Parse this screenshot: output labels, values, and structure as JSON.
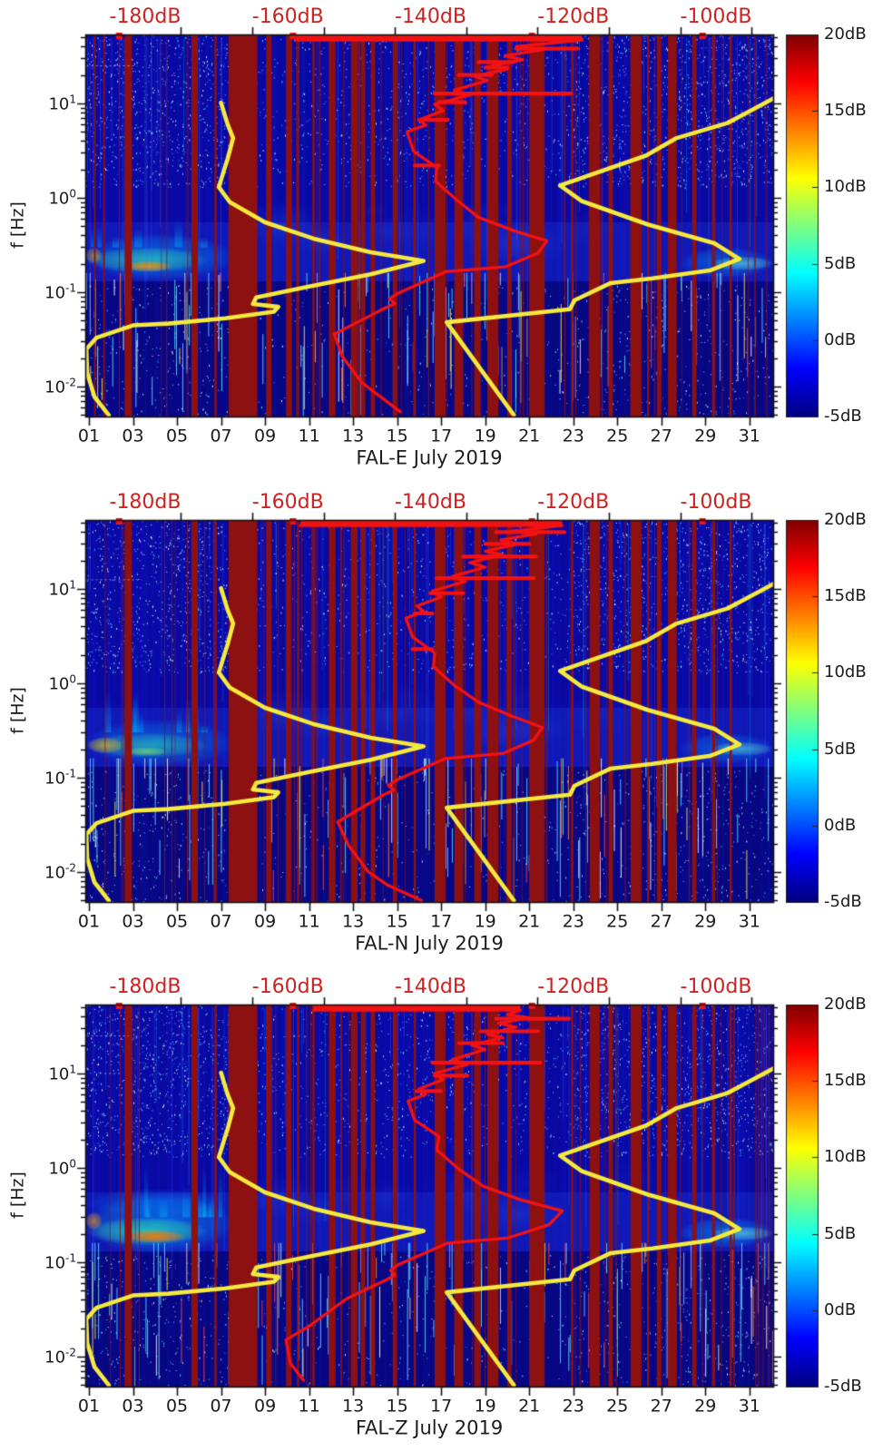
{
  "shared": {
    "ylabel": "f [Hz]",
    "y_base": "10",
    "y_tick_exponents": [
      "1",
      "0",
      "-1",
      "-2"
    ],
    "x_tick_labels": [
      "01",
      "03",
      "05",
      "07",
      "09",
      "11",
      "13",
      "15",
      "17",
      "19",
      "21",
      "23",
      "25",
      "27",
      "29",
      "31"
    ],
    "x_tick_days": [
      1,
      3,
      5,
      7,
      9,
      11,
      13,
      15,
      17,
      19,
      21,
      23,
      25,
      27,
      29,
      31
    ],
    "x_range_days": [
      0.835,
      32.08
    ],
    "y_range_hz": [
      0.0048,
      53.8
    ],
    "y_scale": "log",
    "top_axis": {
      "labels": [
        "-180dB",
        "-160dB",
        "-140dB",
        "-120dB",
        "-100dB"
      ],
      "values": [
        -180,
        -160,
        -140,
        -120,
        -100
      ],
      "range": [
        -188.4,
        -92.0
      ],
      "minor_step": 10
    },
    "colorbar": {
      "labels": [
        "20dB",
        "15dB",
        "10dB",
        "5dB",
        "0dB",
        "-5dB"
      ],
      "values": [
        20,
        15,
        10,
        5,
        0,
        -5
      ],
      "range": [
        -5,
        20
      ]
    },
    "gap_days": [
      [
        2.62,
        2.95
      ],
      [
        5.65,
        5.95
      ],
      [
        6.7,
        6.8
      ],
      [
        7.35,
        8.65
      ],
      [
        9.05,
        9.3
      ],
      [
        9.95,
        10.2
      ],
      [
        10.45,
        10.55
      ],
      [
        11.15,
        11.25
      ],
      [
        11.9,
        12.2
      ],
      [
        12.9,
        13.2
      ],
      [
        13.35,
        13.55
      ],
      [
        13.8,
        14.0
      ],
      [
        14.8,
        15.0
      ],
      [
        15.75,
        15.85
      ],
      [
        16.7,
        17.2
      ],
      [
        17.6,
        18.0
      ],
      [
        18.5,
        18.8
      ],
      [
        19.1,
        19.6
      ],
      [
        20.0,
        20.2
      ],
      [
        21.0,
        21.7
      ],
      [
        22.9,
        23.0
      ],
      [
        23.75,
        24.2
      ],
      [
        24.6,
        24.8
      ],
      [
        25.6,
        26.1
      ],
      [
        26.35,
        26.45
      ],
      [
        26.8,
        27.0
      ],
      [
        27.3,
        27.7
      ],
      [
        28.4,
        28.6
      ],
      [
        29.3,
        29.45
      ],
      [
        30.1,
        30.2
      ]
    ],
    "top_mark_days": [
      2.35,
      10.25,
      21.1,
      28.85
    ],
    "curves": {
      "low_noise_model": {
        "color": "#f6e93e",
        "points": [
          [
            7.0,
            10.2
          ],
          [
            7.3,
            6.0
          ],
          [
            7.55,
            4.3
          ],
          [
            7.3,
            2.6
          ],
          [
            6.9,
            1.3
          ],
          [
            7.4,
            0.9
          ],
          [
            9.0,
            0.55
          ],
          [
            11.2,
            0.37
          ],
          [
            13.8,
            0.265
          ],
          [
            16.2,
            0.215
          ],
          [
            13.8,
            0.155
          ],
          [
            11.0,
            0.115
          ],
          [
            8.6,
            0.088
          ],
          [
            8.45,
            0.075
          ],
          [
            9.6,
            0.07
          ],
          [
            9.4,
            0.062
          ],
          [
            7.2,
            0.053
          ],
          [
            4.6,
            0.0465
          ],
          [
            3.0,
            0.0445
          ],
          [
            1.35,
            0.033
          ],
          [
            0.88,
            0.025
          ],
          [
            0.92,
            0.014
          ],
          [
            1.25,
            0.0078
          ],
          [
            1.9,
            0.005
          ]
        ]
      },
      "high_noise_model": {
        "color": "#f6e93e",
        "points": [
          [
            32.15,
            11.5
          ],
          [
            30.9,
            8.0
          ],
          [
            30.0,
            6.2
          ],
          [
            27.7,
            4.3
          ],
          [
            26.3,
            2.8
          ],
          [
            22.4,
            1.35
          ],
          [
            23.4,
            0.92
          ],
          [
            26.4,
            0.52
          ],
          [
            29.4,
            0.33
          ],
          [
            30.55,
            0.225
          ],
          [
            29.2,
            0.17
          ],
          [
            26.6,
            0.14
          ],
          [
            24.7,
            0.125
          ],
          [
            23.05,
            0.082
          ],
          [
            22.85,
            0.066
          ],
          [
            17.25,
            0.048
          ],
          [
            20.3,
            0.005
          ]
        ]
      }
    }
  },
  "colors": {
    "background_blue": "#0a0aaa",
    "gap_red": "#8e1111",
    "curve_yellow": "#f6e93e",
    "curve_red": "#f31212",
    "top_label_red": "#cc2222",
    "axis_black": "#111111",
    "jet_stops": [
      [
        0,
        "#00007f"
      ],
      [
        0.125,
        "#0000ff"
      ],
      [
        0.375,
        "#00ffff"
      ],
      [
        0.625,
        "#ffff00"
      ],
      [
        0.875,
        "#ff0000"
      ],
      [
        1,
        "#7f0000"
      ]
    ]
  },
  "chart_data": [
    {
      "type": "heatmap",
      "title": "FAL-E July 2019",
      "component": "FAL-E",
      "seed": 11,
      "median_psd": {
        "color": "#f31212",
        "top_plateau": [
          10.4,
          23.4
        ],
        "points": [
          [
            10.4,
            47
          ],
          [
            23.4,
            47
          ],
          [
            20.4,
            40
          ],
          [
            21.6,
            37
          ],
          [
            19.9,
            32
          ],
          [
            20.7,
            29
          ],
          [
            19.3,
            25
          ],
          [
            20.0,
            23
          ],
          [
            18.5,
            19.5
          ],
          [
            19.1,
            17.5
          ],
          [
            17.6,
            13.8
          ],
          [
            18.3,
            12.3
          ],
          [
            16.7,
            9.8
          ],
          [
            17.1,
            8.4
          ],
          [
            16.0,
            6.7
          ],
          [
            16.3,
            5.9
          ],
          [
            15.45,
            5.0
          ],
          [
            15.75,
            3.1
          ],
          [
            16.8,
            2.1
          ],
          [
            16.75,
            1.5
          ],
          [
            17.7,
            0.95
          ],
          [
            18.7,
            0.62
          ],
          [
            20.4,
            0.44
          ],
          [
            21.8,
            0.35
          ],
          [
            21.4,
            0.26
          ],
          [
            19.9,
            0.185
          ],
          [
            17.2,
            0.165
          ],
          [
            15.0,
            0.096
          ],
          [
            14.65,
            0.085
          ],
          [
            14.9,
            0.076
          ],
          [
            14.45,
            0.068
          ],
          [
            12.15,
            0.036
          ],
          [
            12.5,
            0.021
          ],
          [
            13.4,
            0.011
          ],
          [
            15.15,
            0.0054
          ]
        ],
        "spikes": [
          [
            38,
            20.4,
            23.2
          ],
          [
            27.5,
            18.7,
            20.3
          ],
          [
            24,
            19.0,
            20.0
          ],
          [
            20,
            17.8,
            19.3
          ],
          [
            12.7,
            16.7,
            22.9
          ],
          [
            10.3,
            16.9,
            18.1
          ],
          [
            6.7,
            16.0,
            17.3
          ],
          [
            2.2,
            15.8,
            16.9
          ]
        ]
      },
      "blobs": [
        [
          0.84,
          7.6,
          0.13,
          0.42,
          "0,170,255",
          0.5
        ],
        [
          0.84,
          6.4,
          0.16,
          0.3,
          "60,255,160",
          0.5
        ],
        [
          2.6,
          4.8,
          0.165,
          0.215,
          "255,150,0",
          0.85
        ],
        [
          0.84,
          1.6,
          0.2,
          0.3,
          "255,200,0",
          0.5
        ],
        [
          27.8,
          32.1,
          0.14,
          0.3,
          "0,170,255",
          0.45
        ],
        [
          29.3,
          32.1,
          0.17,
          0.24,
          "120,255,220",
          0.5
        ]
      ],
      "wisps": {
        "count": 7,
        "max_f": 0.8
      },
      "hlines": [
        [
          25,
          0.9,
          3.2
        ]
      ]
    },
    {
      "type": "heatmap",
      "title": "FAL-N July 2019",
      "component": "FAL-N",
      "seed": 22,
      "median_psd": {
        "color": "#f31212",
        "top_plateau": [
          10.6,
          22.5
        ],
        "points": [
          [
            10.6,
            47
          ],
          [
            22.5,
            47
          ],
          [
            20.2,
            41
          ],
          [
            21.3,
            38
          ],
          [
            19.7,
            33
          ],
          [
            20.5,
            30
          ],
          [
            19.0,
            25
          ],
          [
            19.8,
            23
          ],
          [
            18.3,
            19
          ],
          [
            19.0,
            17
          ],
          [
            17.5,
            13.5
          ],
          [
            18.1,
            12
          ],
          [
            16.6,
            9.5
          ],
          [
            17.0,
            8.2
          ],
          [
            15.9,
            6.6
          ],
          [
            16.2,
            5.8
          ],
          [
            15.4,
            4.9
          ],
          [
            15.7,
            3.1
          ],
          [
            16.7,
            2.1
          ],
          [
            16.65,
            1.5
          ],
          [
            17.6,
            0.95
          ],
          [
            18.7,
            0.63
          ],
          [
            20.2,
            0.45
          ],
          [
            21.6,
            0.34
          ],
          [
            21.2,
            0.25
          ],
          [
            19.8,
            0.18
          ],
          [
            17.2,
            0.16
          ],
          [
            15.0,
            0.095
          ],
          [
            14.6,
            0.083
          ],
          [
            14.85,
            0.074
          ],
          [
            14.4,
            0.066
          ],
          [
            12.3,
            0.034
          ],
          [
            12.8,
            0.019
          ],
          [
            13.7,
            0.01
          ],
          [
            14.6,
            0.0072
          ],
          [
            16.1,
            0.005
          ]
        ],
        "spikes": [
          [
            40,
            19.5,
            22.6
          ],
          [
            30,
            19.0,
            21.0
          ],
          [
            22,
            18.0,
            21.3
          ],
          [
            13,
            16.8,
            21.2
          ],
          [
            9,
            16.5,
            18.0
          ],
          [
            5.5,
            15.8,
            16.6
          ],
          [
            2.3,
            15.7,
            16.6
          ]
        ]
      },
      "blobs": [
        [
          0.84,
          7.6,
          0.13,
          0.42,
          "0,170,255",
          0.45
        ],
        [
          0.84,
          6.4,
          0.16,
          0.3,
          "60,255,160",
          0.42
        ],
        [
          0.9,
          2.6,
          0.18,
          0.27,
          "255,190,0",
          0.6
        ],
        [
          2.6,
          4.6,
          0.17,
          0.21,
          "150,255,80",
          0.55
        ],
        [
          27.8,
          32.1,
          0.14,
          0.3,
          "0,170,255",
          0.42
        ],
        [
          29.3,
          32.1,
          0.17,
          0.24,
          "120,255,220",
          0.45
        ]
      ],
      "wisps": {
        "count": 8,
        "max_f": 0.9
      },
      "hlines": [
        [
          12.5,
          0.9,
          3.4
        ]
      ]
    },
    {
      "type": "heatmap",
      "title": "FAL-Z July 2019",
      "component": "FAL-Z",
      "seed": 33,
      "median_psd": {
        "color": "#f31212",
        "top_plateau": [
          11.2,
          20.6
        ],
        "points": [
          [
            11.2,
            47
          ],
          [
            20.6,
            47
          ],
          [
            20.0,
            42
          ],
          [
            21.0,
            39
          ],
          [
            19.6,
            34
          ],
          [
            20.4,
            31
          ],
          [
            19.1,
            26
          ],
          [
            19.8,
            24
          ],
          [
            18.4,
            20
          ],
          [
            19.0,
            18
          ],
          [
            17.5,
            14
          ],
          [
            18.2,
            12.5
          ],
          [
            16.7,
            10
          ],
          [
            17.1,
            8.6
          ],
          [
            16.0,
            6.9
          ],
          [
            16.3,
            6.0
          ],
          [
            15.5,
            5.1
          ],
          [
            15.8,
            3.2
          ],
          [
            16.9,
            2.15
          ],
          [
            16.8,
            1.55
          ],
          [
            17.8,
            0.97
          ],
          [
            18.9,
            0.64
          ],
          [
            20.6,
            0.46
          ],
          [
            22.5,
            0.35
          ],
          [
            21.9,
            0.25
          ],
          [
            20.0,
            0.18
          ],
          [
            17.3,
            0.16
          ],
          [
            15.0,
            0.093
          ],
          [
            14.7,
            0.082
          ],
          [
            14.9,
            0.073
          ],
          [
            14.5,
            0.065
          ],
          [
            12.7,
            0.041
          ],
          [
            11.0,
            0.021
          ],
          [
            9.95,
            0.015
          ],
          [
            10.15,
            0.0085
          ],
          [
            10.75,
            0.0056
          ]
        ],
        "spikes": [
          [
            38,
            19.5,
            22.8
          ],
          [
            28,
            18.8,
            21.4
          ],
          [
            21,
            17.8,
            19.8
          ],
          [
            13,
            16.6,
            21.5
          ],
          [
            9.5,
            16.7,
            18.2
          ],
          [
            6.5,
            15.9,
            17.0
          ]
        ]
      },
      "blobs": [
        [
          0.84,
          7.6,
          0.12,
          0.55,
          "0,170,255",
          0.55
        ],
        [
          0.84,
          7.2,
          0.3,
          0.6,
          "0,140,255",
          0.35
        ],
        [
          0.84,
          6.4,
          0.15,
          0.3,
          "60,255,160",
          0.6
        ],
        [
          2.6,
          5.4,
          0.16,
          0.22,
          "255,120,0",
          0.9
        ],
        [
          0.84,
          1.6,
          0.22,
          0.34,
          "255,160,0",
          0.6
        ],
        [
          27.8,
          32.1,
          0.14,
          0.3,
          "0,170,255",
          0.5
        ],
        [
          29.3,
          32.1,
          0.17,
          0.24,
          "120,255,220",
          0.5
        ]
      ],
      "wisps": {
        "count": 10,
        "max_f": 1.1
      },
      "hlines": [
        [
          25,
          0.9,
          2.8
        ],
        [
          10,
          1.5,
          2.5
        ]
      ]
    }
  ]
}
